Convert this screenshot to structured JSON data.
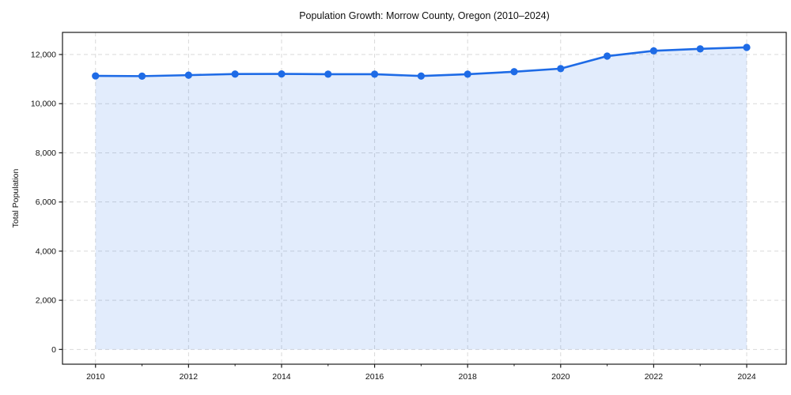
{
  "chart_data": {
    "type": "line",
    "title": "Population Growth: Morrow County, Oregon (2010–2024)",
    "xlabel": "",
    "ylabel": "Total Population",
    "legend": "none",
    "grid": "dashed-major-both-axes",
    "area_fill_under_line": true,
    "x": [
      2010,
      2011,
      2012,
      2013,
      2014,
      2015,
      2016,
      2017,
      2018,
      2019,
      2020,
      2021,
      2022,
      2023,
      2024
    ],
    "series": [
      {
        "name": "Total Population",
        "values": [
          11130,
          11120,
          11160,
          11205,
          11210,
          11200,
          11200,
          11125,
          11200,
          11300,
          11425,
          11935,
          12150,
          12230,
          12290
        ]
      }
    ],
    "xlim": [
      2009.29,
      2024.85
    ],
    "ylim": [
      -600,
      12900
    ],
    "x_major_ticks": [
      {
        "v": 2010,
        "label": "2010"
      },
      {
        "v": 2012,
        "label": "2012"
      },
      {
        "v": 2014,
        "label": "2014"
      },
      {
        "v": 2016,
        "label": "2016"
      },
      {
        "v": 2018,
        "label": "2018"
      },
      {
        "v": 2020,
        "label": "2020"
      },
      {
        "v": 2022,
        "label": "2022"
      },
      {
        "v": 2024,
        "label": "2024"
      }
    ],
    "x_minor_ticks": [
      2011,
      2013,
      2015,
      2017,
      2019,
      2021,
      2023
    ],
    "y_major_ticks": [
      {
        "v": 0,
        "label": "0"
      },
      {
        "v": 2000,
        "label": "2,000"
      },
      {
        "v": 4000,
        "label": "4,000"
      },
      {
        "v": 6000,
        "label": "6,000"
      },
      {
        "v": 8000,
        "label": "8,000"
      },
      {
        "v": 10000,
        "label": "10,000"
      },
      {
        "v": 12000,
        "label": "12,000"
      }
    ],
    "colors": {
      "line": "#1e6be6",
      "marker": "#1e6be6",
      "area_fill": "rgba(30, 107, 230, 0.13)",
      "grid": "#d9d9d9",
      "spine": "#1a1a1a",
      "tick_text": "#111111",
      "background": "#ffffff"
    },
    "marker_radius": 4.6,
    "line_width": 2.6
  }
}
